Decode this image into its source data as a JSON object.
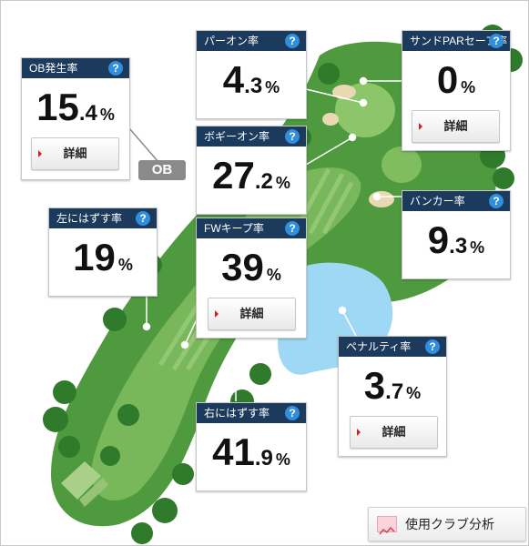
{
  "cards": {
    "ob": {
      "title": "OB発生率",
      "int": "15",
      "dec": ".4",
      "unit": "%",
      "button": "詳細"
    },
    "par_on": {
      "title": "パーオン率",
      "int": "4",
      "dec": ".3",
      "unit": "%"
    },
    "sand_save": {
      "title": "サンドPARセーブ率",
      "int": "0",
      "dec": "",
      "unit": "%",
      "button": "詳細"
    },
    "bogey_on": {
      "title": "ボギーオン率",
      "int": "27",
      "dec": ".2",
      "unit": "%"
    },
    "miss_left": {
      "title": "左にはずす率",
      "int": "19",
      "dec": "",
      "unit": "%"
    },
    "fairway_keep": {
      "title": "FWキープ率",
      "int": "39",
      "dec": "",
      "unit": "%",
      "button": "詳細"
    },
    "bunker": {
      "title": "バンカー率",
      "int": "9",
      "dec": ".3",
      "unit": "%"
    },
    "penalty": {
      "title": "ペナルティ率",
      "int": "3",
      "dec": ".7",
      "unit": "%",
      "button": "詳細"
    },
    "miss_right": {
      "title": "右にはずす率",
      "int": "41",
      "dec": ".9",
      "unit": "%"
    }
  },
  "help_glyph": "?",
  "ob_badge": "OB",
  "club_analysis_button": "使用クラブ分析",
  "colors": {
    "header_navy": "#1b3a5c",
    "help_blue": "#2f8ede",
    "rough_green": "#4f9a3f",
    "fairway_green": "#79b85a",
    "tree_green": "#2f7a2b",
    "water_blue": "#9fd8f4",
    "sand": "#e8d9b2",
    "ob_gray": "#8a8a8a"
  }
}
